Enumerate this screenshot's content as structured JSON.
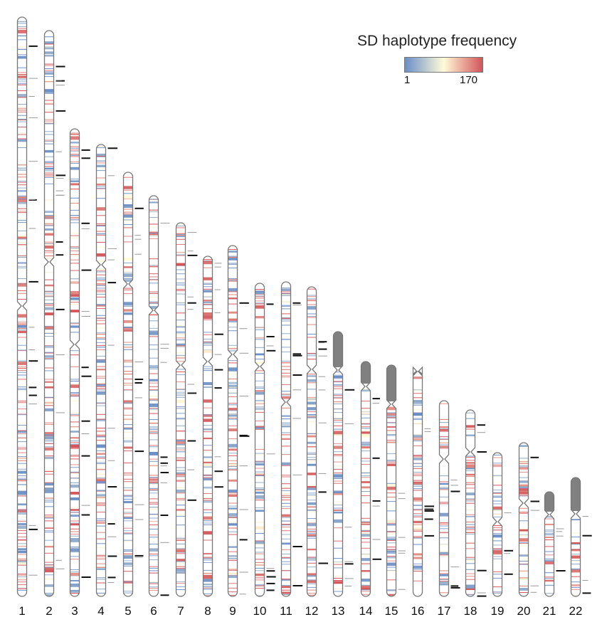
{
  "legend": {
    "title": "SD haplotype frequency",
    "min_label": "1",
    "max_label": "170",
    "colors": [
      "#6a8ec7",
      "#fffbd8",
      "#d2545a"
    ]
  },
  "chart_data": {
    "type": "heatmap",
    "title": "",
    "xlabel": "",
    "ylabel": "",
    "categories": [
      "1",
      "2",
      "3",
      "4",
      "5",
      "6",
      "7",
      "8",
      "9",
      "10",
      "11",
      "12",
      "13",
      "14",
      "15",
      "16",
      "17",
      "18",
      "19",
      "20",
      "21",
      "22"
    ],
    "color_scale": {
      "min": 1,
      "max": 170,
      "colors": [
        "#6a8ec7",
        "#fffbd8",
        "#d2545a"
      ]
    },
    "acrocentric": [
      "13",
      "14",
      "15",
      "21",
      "22"
    ],
    "outline_color": "#777777",
    "p_arm_fill_color": "#808080"
  }
}
